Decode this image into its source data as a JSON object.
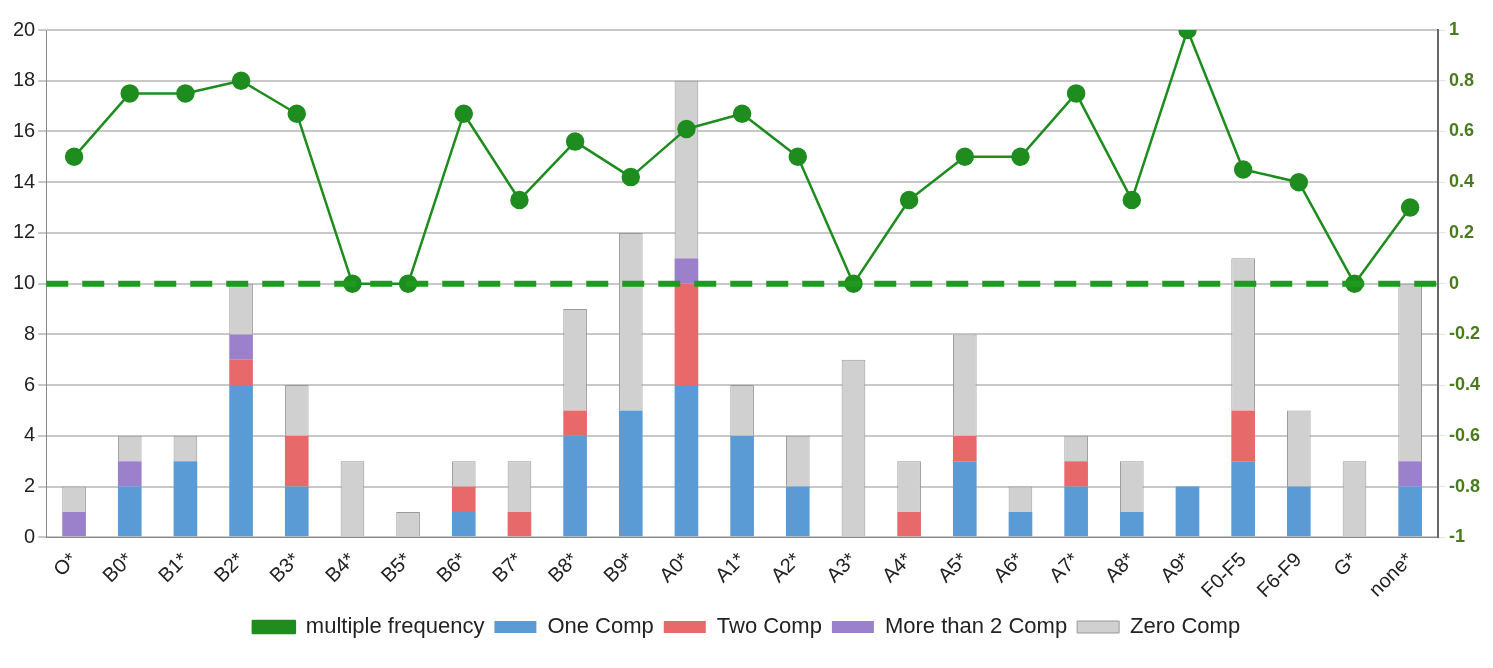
{
  "chart_data": {
    "type": "bar",
    "stacked": true,
    "categories": [
      "O*",
      "B0*",
      "B1*",
      "B2*",
      "B3*",
      "B4*",
      "B5*",
      "B6*",
      "B7*",
      "B8*",
      "B9*",
      "A0*",
      "A1*",
      "A2*",
      "A3*",
      "A4*",
      "A5*",
      "A6*",
      "A7*",
      "A8*",
      "A9*",
      "F0-F5",
      "F6-F9",
      "G*",
      "none*"
    ],
    "series": [
      {
        "name": "One Comp",
        "color": "#5b9bd5",
        "values": [
          0,
          2,
          3,
          6,
          2,
          0,
          0,
          1,
          0,
          4,
          5,
          6,
          4,
          2,
          0,
          0,
          3,
          1,
          2,
          1,
          2,
          3,
          2,
          0,
          2
        ]
      },
      {
        "name": "Two Comp",
        "color": "#e8696a",
        "values": [
          0,
          0,
          0,
          1,
          2,
          0,
          0,
          1,
          1,
          1,
          0,
          4,
          0,
          0,
          0,
          1,
          1,
          0,
          1,
          0,
          0,
          2,
          0,
          0,
          0
        ]
      },
      {
        "name": "More than 2 Comp",
        "color": "#9b80cc",
        "values": [
          1,
          1,
          0,
          1,
          0,
          0,
          0,
          0,
          0,
          0,
          0,
          1,
          0,
          0,
          0,
          0,
          0,
          0,
          0,
          0,
          0,
          0,
          0,
          0,
          1
        ]
      },
      {
        "name": "Zero Comp",
        "color": "#d0d0d0",
        "values": [
          1,
          1,
          1,
          2,
          2,
          3,
          1,
          1,
          2,
          4,
          7,
          7,
          2,
          2,
          7,
          2,
          4,
          1,
          1,
          2,
          0,
          6,
          3,
          3,
          7
        ]
      },
      {
        "name": "multiple frequency",
        "type": "line",
        "axis": "y2",
        "color": "#1e8c1e",
        "values": [
          0.5,
          0.75,
          0.75,
          0.8,
          0.67,
          0,
          0,
          0.67,
          0.33,
          0.56,
          0.42,
          0.61,
          0.67,
          0.5,
          0,
          0.33,
          0.5,
          0.5,
          0.75,
          0.33,
          1,
          0.45,
          0.4,
          0,
          0.3
        ]
      }
    ],
    "ylim": [
      0,
      20
    ],
    "yticks": [
      0,
      2,
      4,
      6,
      8,
      10,
      12,
      14,
      16,
      18,
      20
    ],
    "y2lim": [
      -1,
      1
    ],
    "y2ticks": [
      {
        "value": -1,
        "label": "-1"
      },
      {
        "value": -0.8,
        "label": "-0.8"
      },
      {
        "value": -0.6,
        "label": "-0.6"
      },
      {
        "value": -0.4,
        "label": "-0.4"
      },
      {
        "value": -0.2,
        "label": "-0.2"
      },
      {
        "value": 0,
        "label": "0"
      },
      {
        "value": 0.2,
        "label": "0.2"
      },
      {
        "value": 0.4,
        "label": "0.4"
      },
      {
        "value": 0.6,
        "label": "0.6"
      },
      {
        "value": 0.8,
        "label": "0.8"
      },
      {
        "value": 1,
        "label": "1"
      }
    ],
    "ref_lines": [
      {
        "axis": "y2",
        "value": 0,
        "color": "#1e9a1e",
        "line_style": "dashed"
      }
    ],
    "grid": "y",
    "legend": "bottom",
    "marker": "circle"
  }
}
